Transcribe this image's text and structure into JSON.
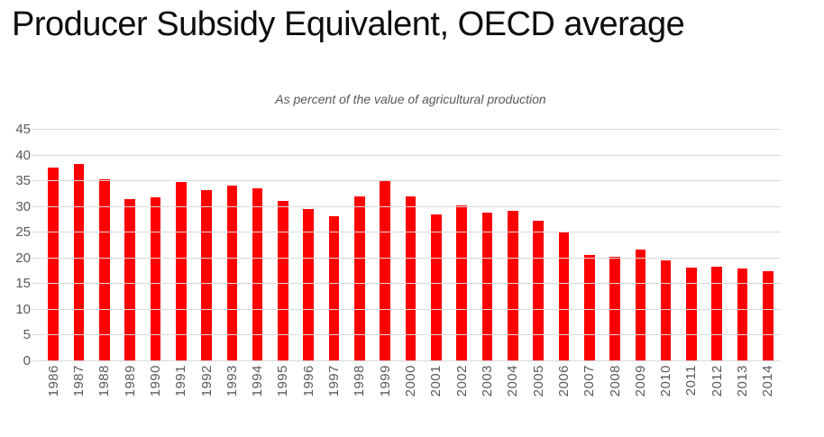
{
  "header": {
    "title": "Producer Subsidy Equivalent, OECD average",
    "subtitle": "As percent of the value of agricultural production"
  },
  "colors": {
    "bar": "#ff0000",
    "gridline": "#d9d9d9",
    "axis_text": "#595959",
    "title_text": "#0d0d0d",
    "background": "#ffffff"
  },
  "chart_data": {
    "type": "bar",
    "title": "Producer Subsidy Equivalent, OECD average",
    "subtitle": "As percent of the value of agricultural production",
    "xlabel": "",
    "ylabel": "",
    "categories": [
      "1986",
      "1987",
      "1988",
      "1989",
      "1990",
      "1991",
      "1992",
      "1993",
      "1994",
      "1995",
      "1996",
      "1997",
      "1998",
      "1999",
      "2000",
      "2001",
      "2002",
      "2003",
      "2004",
      "2005",
      "2006",
      "2007",
      "2008",
      "2009",
      "2010",
      "2011",
      "2012",
      "2013",
      "2014"
    ],
    "values": [
      37.4,
      38.2,
      35.2,
      31.3,
      31.7,
      34.6,
      33.1,
      33.9,
      33.5,
      31.0,
      29.5,
      28.0,
      31.9,
      34.9,
      31.9,
      28.4,
      30.2,
      28.8,
      29.0,
      27.2,
      25.1,
      20.5,
      20.1,
      21.5,
      19.5,
      18.1,
      18.3,
      17.9,
      17.3
    ],
    "ylim": [
      0,
      45
    ],
    "yticks": [
      45,
      40,
      35,
      30,
      25,
      20,
      15,
      10,
      5,
      0
    ],
    "grid": true,
    "legend": false,
    "bar_color": "#ff0000",
    "x_label_rotation_deg": -90
  }
}
